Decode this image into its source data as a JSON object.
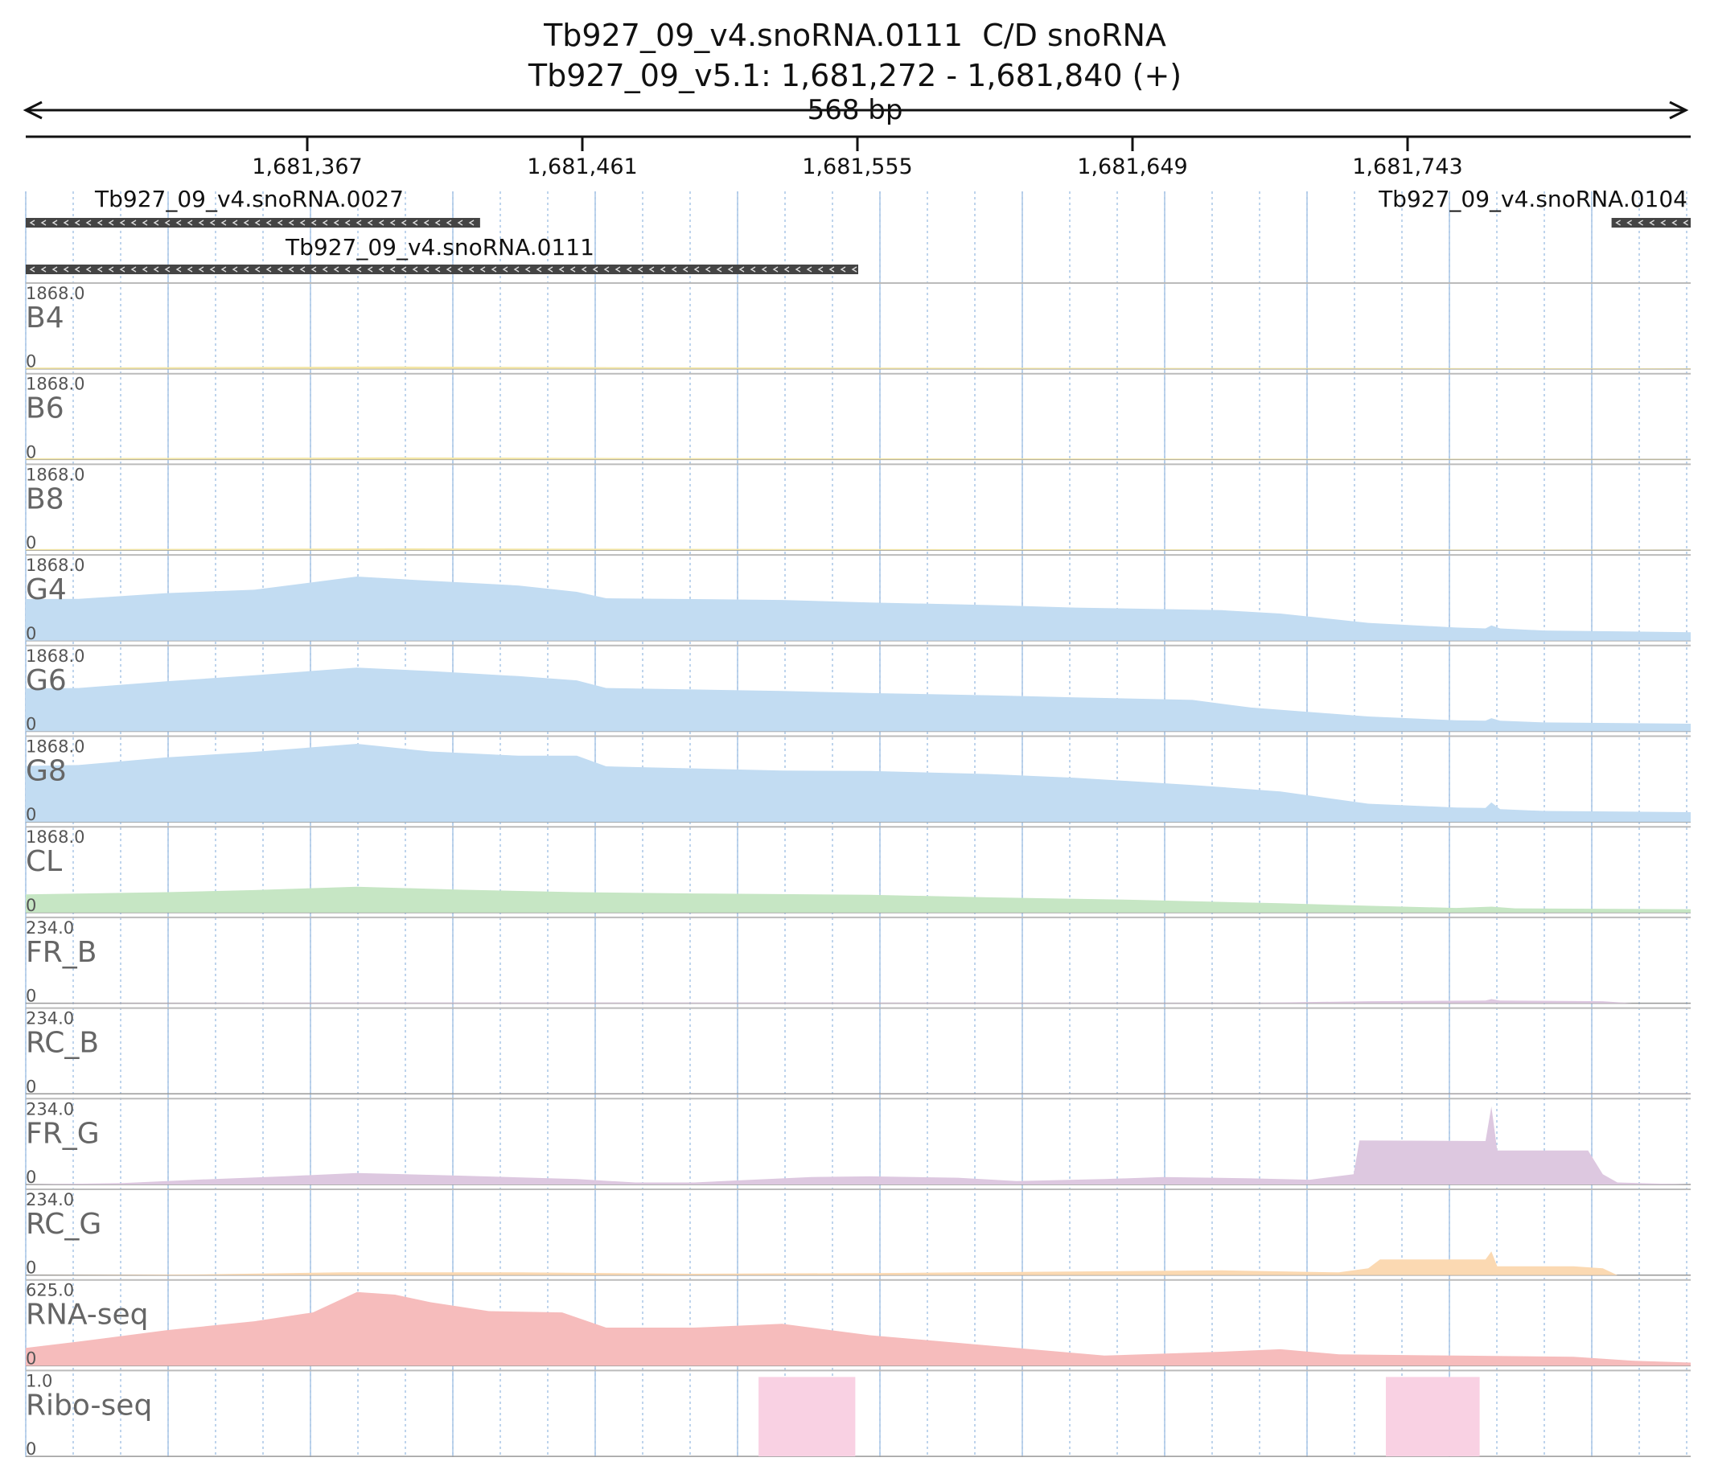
{
  "header": {
    "title_line1": "Tb927_09_v4.snoRNA.0111  C/D snoRNA",
    "title_line2": "Tb927_09_v5.1: 1,681,272 - 1,681,840 (+)",
    "span_label": "568 bp"
  },
  "ruler": {
    "ticks": [
      "1,681,367",
      "1,681,461",
      "1,681,555",
      "1,681,649",
      "1,681,743"
    ]
  },
  "features": [
    {
      "name": "Tb927_09_v4.snoRNA.0027",
      "start": 1681272,
      "end": 1681427,
      "strand": "-"
    },
    {
      "name": "Tb927_09_v4.snoRNA.0111",
      "start": 1681272,
      "end": 1681556,
      "strand": "-"
    },
    {
      "name": "Tb927_09_v4.snoRNA.0104",
      "start": 1681813,
      "end": 1681840,
      "strand": "-"
    }
  ],
  "colors": {
    "yellow": "#f3e6a6",
    "blue": "#c2dcf2",
    "green": "#c6e6c4",
    "purple": "#ddc8e0",
    "orange": "#fbd9b2",
    "red": "#f6bcbc",
    "pink": "#f9d1e3"
  },
  "chart_data": {
    "type": "area",
    "x_range": [
      1681272,
      1681840
    ],
    "x_unit": "bp",
    "tracks": [
      {
        "name": "B4",
        "max": "1868.0",
        "min": "0",
        "ymax": 1868,
        "color": "yellow",
        "points": [
          [
            1681272,
            30
          ],
          [
            1681400,
            55
          ],
          [
            1681500,
            35
          ],
          [
            1681600,
            25
          ],
          [
            1681700,
            20
          ],
          [
            1681840,
            12
          ]
        ]
      },
      {
        "name": "B6",
        "max": "1868.0",
        "min": "0",
        "ymax": 1868,
        "color": "yellow",
        "points": [
          [
            1681272,
            28
          ],
          [
            1681400,
            50
          ],
          [
            1681500,
            32
          ],
          [
            1681600,
            24
          ],
          [
            1681700,
            18
          ],
          [
            1681840,
            10
          ]
        ]
      },
      {
        "name": "B8",
        "max": "1868.0",
        "min": "0",
        "ymax": 1868,
        "color": "yellow",
        "points": [
          [
            1681272,
            22
          ],
          [
            1681400,
            40
          ],
          [
            1681500,
            28
          ],
          [
            1681600,
            20
          ],
          [
            1681700,
            15
          ],
          [
            1681840,
            8
          ]
        ]
      },
      {
        "name": "G4",
        "max": "1868.0",
        "min": "0",
        "ymax": 1868,
        "color": "blue",
        "points": [
          [
            1681272,
            980
          ],
          [
            1681290,
            985
          ],
          [
            1681320,
            1120
          ],
          [
            1681350,
            1200
          ],
          [
            1681385,
            1510
          ],
          [
            1681410,
            1410
          ],
          [
            1681440,
            1300
          ],
          [
            1681460,
            1150
          ],
          [
            1681470,
            1000
          ],
          [
            1681530,
            960
          ],
          [
            1681560,
            900
          ],
          [
            1681600,
            840
          ],
          [
            1681630,
            780
          ],
          [
            1681680,
            720
          ],
          [
            1681700,
            640
          ],
          [
            1681730,
            420
          ],
          [
            1681760,
            310
          ],
          [
            1681770,
            290
          ],
          [
            1681772,
            360
          ],
          [
            1681775,
            290
          ],
          [
            1681790,
            240
          ],
          [
            1681840,
            200
          ]
        ]
      },
      {
        "name": "G6",
        "max": "1868.0",
        "min": "0",
        "ymax": 1868,
        "color": "blue",
        "points": [
          [
            1681272,
            1010
          ],
          [
            1681290,
            1020
          ],
          [
            1681320,
            1180
          ],
          [
            1681350,
            1320
          ],
          [
            1681385,
            1500
          ],
          [
            1681410,
            1420
          ],
          [
            1681440,
            1300
          ],
          [
            1681460,
            1200
          ],
          [
            1681470,
            1020
          ],
          [
            1681530,
            950
          ],
          [
            1681560,
            900
          ],
          [
            1681600,
            850
          ],
          [
            1681630,
            800
          ],
          [
            1681670,
            740
          ],
          [
            1681690,
            560
          ],
          [
            1681730,
            350
          ],
          [
            1681760,
            260
          ],
          [
            1681770,
            250
          ],
          [
            1681772,
            310
          ],
          [
            1681775,
            250
          ],
          [
            1681790,
            210
          ],
          [
            1681840,
            180
          ]
        ]
      },
      {
        "name": "G8",
        "max": "1868.0",
        "min": "0",
        "ymax": 1868,
        "color": "blue",
        "points": [
          [
            1681272,
            1320
          ],
          [
            1681290,
            1340
          ],
          [
            1681320,
            1520
          ],
          [
            1681350,
            1650
          ],
          [
            1681385,
            1840
          ],
          [
            1681410,
            1660
          ],
          [
            1681440,
            1560
          ],
          [
            1681460,
            1560
          ],
          [
            1681470,
            1310
          ],
          [
            1681530,
            1210
          ],
          [
            1681560,
            1200
          ],
          [
            1681600,
            1130
          ],
          [
            1681630,
            1040
          ],
          [
            1681670,
            870
          ],
          [
            1681700,
            720
          ],
          [
            1681730,
            430
          ],
          [
            1681760,
            340
          ],
          [
            1681770,
            330
          ],
          [
            1681772,
            460
          ],
          [
            1681775,
            300
          ],
          [
            1681790,
            260
          ],
          [
            1681840,
            230
          ]
        ]
      },
      {
        "name": "CL",
        "max": "1868.0",
        "min": "0",
        "ymax": 1868,
        "color": "green",
        "points": [
          [
            1681272,
            430
          ],
          [
            1681320,
            480
          ],
          [
            1681350,
            530
          ],
          [
            1681385,
            610
          ],
          [
            1681420,
            540
          ],
          [
            1681460,
            480
          ],
          [
            1681500,
            450
          ],
          [
            1681560,
            420
          ],
          [
            1681600,
            360
          ],
          [
            1681650,
            300
          ],
          [
            1681700,
            220
          ],
          [
            1681730,
            160
          ],
          [
            1681760,
            110
          ],
          [
            1681772,
            140
          ],
          [
            1681780,
            100
          ],
          [
            1681840,
            80
          ]
        ]
      },
      {
        "name": "FR_B",
        "max": "234.0",
        "min": "0",
        "ymax": 234,
        "color": "purple",
        "points": [
          [
            1681272,
            0
          ],
          [
            1681380,
            2
          ],
          [
            1681500,
            2
          ],
          [
            1681560,
            2
          ],
          [
            1681690,
            1
          ],
          [
            1681730,
            6
          ],
          [
            1681770,
            8
          ],
          [
            1681772,
            12
          ],
          [
            1681775,
            8
          ],
          [
            1681810,
            6
          ],
          [
            1681820,
            0
          ],
          [
            1681840,
            0
          ]
        ]
      },
      {
        "name": "RC_B",
        "max": "234.0",
        "min": "0",
        "ymax": 234,
        "color": "purple",
        "points": [
          [
            1681272,
            0
          ],
          [
            1681840,
            1
          ]
        ]
      },
      {
        "name": "FR_G",
        "max": "234.0",
        "min": "0",
        "ymax": 234,
        "color": "purple",
        "points": [
          [
            1681272,
            0
          ],
          [
            1681305,
            4
          ],
          [
            1681330,
            14
          ],
          [
            1681360,
            24
          ],
          [
            1681385,
            34
          ],
          [
            1681420,
            26
          ],
          [
            1681460,
            16
          ],
          [
            1681480,
            6
          ],
          [
            1681500,
            6
          ],
          [
            1681540,
            22
          ],
          [
            1681560,
            24
          ],
          [
            1681590,
            20
          ],
          [
            1681610,
            10
          ],
          [
            1681640,
            16
          ],
          [
            1681660,
            22
          ],
          [
            1681690,
            18
          ],
          [
            1681710,
            14
          ],
          [
            1681725,
            30
          ],
          [
            1681727,
            130
          ],
          [
            1681770,
            128
          ],
          [
            1681772,
            230
          ],
          [
            1681774,
            100
          ],
          [
            1681790,
            100
          ],
          [
            1681805,
            100
          ],
          [
            1681810,
            30
          ],
          [
            1681815,
            6
          ],
          [
            1681840,
            0
          ]
        ]
      },
      {
        "name": "RC_G",
        "max": "234.0",
        "min": "0",
        "ymax": 234,
        "color": "orange",
        "points": [
          [
            1681272,
            0
          ],
          [
            1681330,
            2
          ],
          [
            1681380,
            8
          ],
          [
            1681440,
            8
          ],
          [
            1681500,
            4
          ],
          [
            1681560,
            6
          ],
          [
            1681620,
            10
          ],
          [
            1681680,
            14
          ],
          [
            1681720,
            8
          ],
          [
            1681730,
            20
          ],
          [
            1681734,
            46
          ],
          [
            1681770,
            46
          ],
          [
            1681772,
            70
          ],
          [
            1681774,
            26
          ],
          [
            1681800,
            26
          ],
          [
            1681810,
            20
          ],
          [
            1681815,
            0
          ],
          [
            1681840,
            0
          ]
        ]
      },
      {
        "name": "RNA-seq",
        "max": "625.0",
        "min": "0",
        "ymax": 625,
        "color": "red",
        "points": [
          [
            1681272,
            140
          ],
          [
            1681290,
            190
          ],
          [
            1681320,
            280
          ],
          [
            1681350,
            350
          ],
          [
            1681370,
            420
          ],
          [
            1681385,
            580
          ],
          [
            1681398,
            560
          ],
          [
            1681410,
            500
          ],
          [
            1681430,
            430
          ],
          [
            1681455,
            420
          ],
          [
            1681470,
            300
          ],
          [
            1681500,
            300
          ],
          [
            1681530,
            330
          ],
          [
            1681560,
            240
          ],
          [
            1681600,
            160
          ],
          [
            1681640,
            80
          ],
          [
            1681680,
            110
          ],
          [
            1681700,
            130
          ],
          [
            1681720,
            90
          ],
          [
            1681760,
            80
          ],
          [
            1681800,
            70
          ],
          [
            1681820,
            40
          ],
          [
            1681840,
            25
          ]
        ]
      },
      {
        "name": "Ribo-seq",
        "max": "1.0",
        "min": "0",
        "ymax": 1,
        "color": "pink",
        "segments": [
          [
            1681522,
            1681555,
            1.0
          ],
          [
            1681736,
            1681768,
            1.0
          ]
        ]
      }
    ]
  }
}
